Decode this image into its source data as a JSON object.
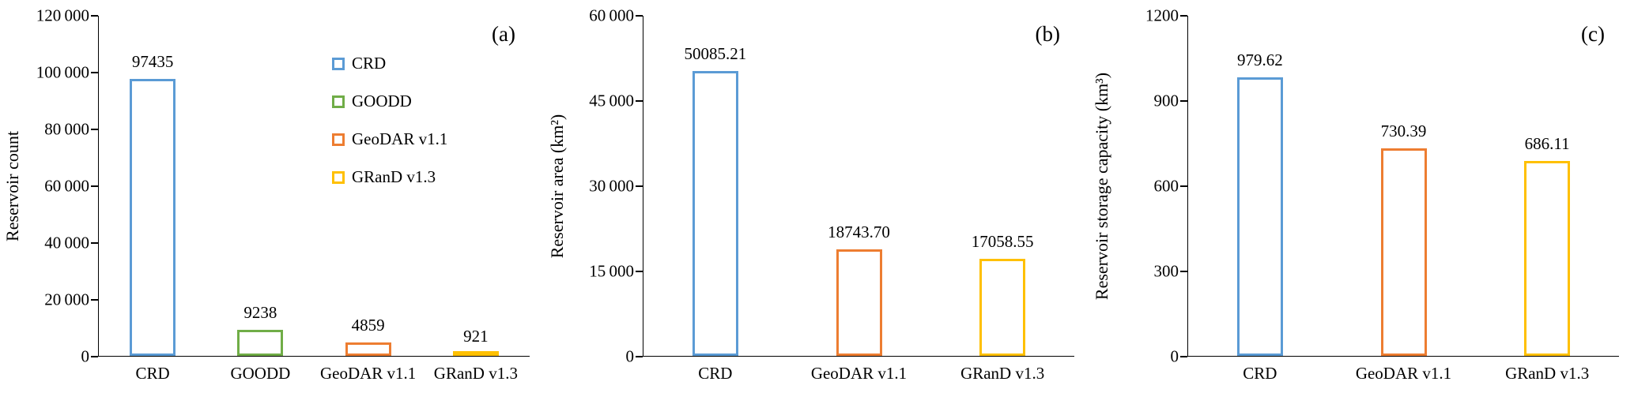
{
  "colors": {
    "crd_blue": "#5B9BD5",
    "goodd_green": "#70AD47",
    "geodar_orange": "#ED7D31",
    "grand_yellow": "#FFC000",
    "axis": "#000000",
    "background": "#FFFFFF"
  },
  "chart_data": [
    {
      "type": "bar",
      "panel_label": "(a)",
      "ylabel": "Reservoir count",
      "xlabel": "",
      "ylim": [
        0,
        120000
      ],
      "grid": false,
      "tick_values": [
        0,
        20000,
        40000,
        60000,
        80000,
        100000,
        120000
      ],
      "tick_labels": [
        "0",
        "20 000",
        "40 000",
        "60 000",
        "80 000",
        "100 000",
        "120 000"
      ],
      "categories": [
        "CRD",
        "GOODD",
        "GeoDAR v1.1",
        "GRanD v1.3"
      ],
      "values": [
        97435,
        9238,
        4859,
        921
      ],
      "value_labels": [
        "97435",
        "9238",
        "4859",
        "921"
      ],
      "bar_colors": [
        "#5B9BD5",
        "#70AD47",
        "#ED7D31",
        "#FFC000"
      ],
      "legend_position": "upper-center",
      "legend": [
        {
          "label": "CRD",
          "color": "#5B9BD5"
        },
        {
          "label": "GOODD",
          "color": "#70AD47"
        },
        {
          "label": "GeoDAR v1.1",
          "color": "#ED7D31"
        },
        {
          "label": "GRanD v1.3",
          "color": "#FFC000"
        }
      ]
    },
    {
      "type": "bar",
      "panel_label": "(b)",
      "ylabel": "Reservoir area (km²)",
      "xlabel": "",
      "ylim": [
        0,
        60000
      ],
      "grid": false,
      "tick_values": [
        0,
        15000,
        30000,
        45000,
        60000
      ],
      "tick_labels": [
        "0",
        "15 000",
        "30 000",
        "45 000",
        "60 000"
      ],
      "categories": [
        "CRD",
        "GeoDAR v1.1",
        "GRanD v1.3"
      ],
      "values": [
        50085.21,
        18743.7,
        17058.55
      ],
      "value_labels": [
        "50085.21",
        "18743.70",
        "17058.55"
      ],
      "bar_colors": [
        "#5B9BD5",
        "#ED7D31",
        "#FFC000"
      ]
    },
    {
      "type": "bar",
      "panel_label": "(c)",
      "ylabel": "Reservoir storage capacity (km³)",
      "xlabel": "",
      "ylim": [
        0,
        1200
      ],
      "grid": false,
      "tick_values": [
        0,
        300,
        600,
        900,
        1200
      ],
      "tick_labels": [
        "0",
        "300",
        "600",
        "900",
        "1200"
      ],
      "categories": [
        "CRD",
        "GeoDAR v1.1",
        "GRanD v1.3"
      ],
      "values": [
        979.62,
        730.39,
        686.11
      ],
      "value_labels": [
        "979.62",
        "730.39",
        "686.11"
      ],
      "bar_colors": [
        "#5B9BD5",
        "#ED7D31",
        "#FFC000"
      ]
    }
  ]
}
